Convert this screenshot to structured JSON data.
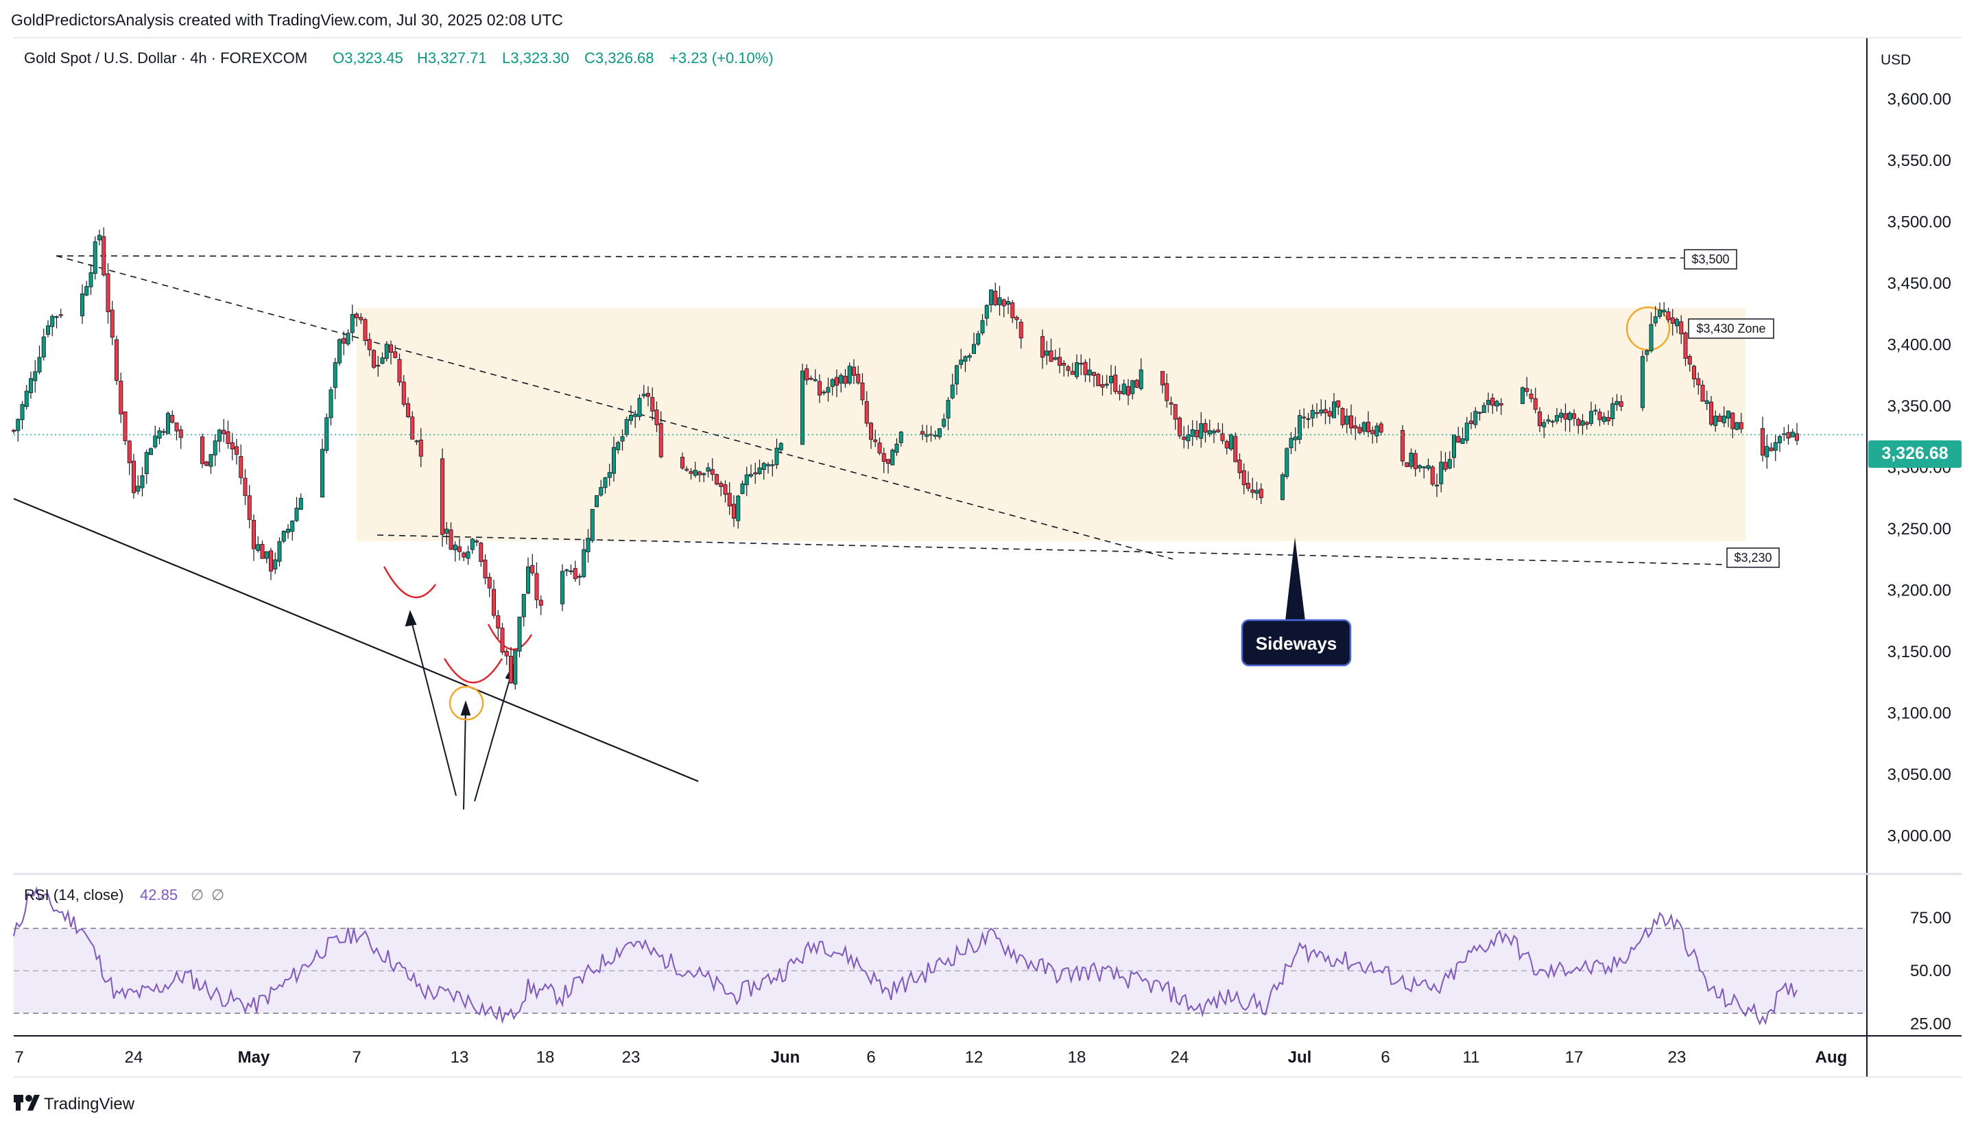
{
  "header": {
    "attribution": "GoldPredictorsAnalysis created with TradingView.com, Jul 30, 2025 02:08 UTC"
  },
  "legend": {
    "symbol": "Gold Spot / U.S. Dollar · 4h · FOREXCOM",
    "open": "O3,323.45",
    "high": "H3,327.71",
    "low": "L3,323.30",
    "close": "C3,326.68",
    "change": "+3.23 (+0.10%)"
  },
  "price_scale": {
    "currency": "USD",
    "ticks": [
      "3,600.00",
      "3,550.00",
      "3,500.00",
      "3,450.00",
      "3,400.00",
      "3,350.00",
      "3,300.00",
      "3,250.00",
      "3,200.00",
      "3,150.00",
      "3,100.00",
      "3,050.00",
      "3,000.00"
    ],
    "last_price": "3,326.68"
  },
  "rsi_pane": {
    "label": "RSI (14, close)",
    "value": "42.85",
    "extra1": "∅",
    "extra2": "∅",
    "ticks": [
      "75.00",
      "50.00",
      "25.00"
    ]
  },
  "time_axis": {
    "ticks": [
      "7",
      "24",
      "May",
      "7",
      "13",
      "18",
      "23",
      "Jun",
      "6",
      "12",
      "18",
      "24",
      "Jul",
      "6",
      "11",
      "17",
      "23",
      "Aug"
    ]
  },
  "annotations": {
    "level_3500": "$3,500",
    "zone_3430": "$3,430 Zone",
    "level_3230": "$3,230",
    "callout": "Sideways"
  },
  "footer": {
    "brand": "TradingView"
  },
  "colors": {
    "up": "#089981",
    "down": "#f23645",
    "accent": "#22ab94",
    "rsi_line": "#7e57c2",
    "zone_fill": "#fdf1de",
    "orange": "#f5a623"
  },
  "chart_data": [
    {
      "type": "candlestick",
      "title": "Gold Spot / U.S. Dollar · 4h · FOREXCOM",
      "ylabel": "USD",
      "ylim": [
        2970,
        3650
      ],
      "x_range": [
        "2025-04-17",
        "2025-08-03"
      ],
      "last": 3326.68,
      "ohlc_latest": {
        "open": 3323.45,
        "high": 3327.71,
        "low": 3323.3,
        "close": 3326.68,
        "change": 3.23,
        "change_pct": 0.1
      },
      "path_close": [
        [
          "2025-04-17",
          3330
        ],
        [
          "2025-04-18",
          3370
        ],
        [
          "2025-04-19",
          3420
        ],
        [
          "2025-04-21",
          3440
        ],
        [
          "2025-04-22",
          3490
        ],
        [
          "2025-04-23",
          3370
        ],
        [
          "2025-04-24",
          3280
        ],
        [
          "2025-04-25",
          3320
        ],
        [
          "2025-04-26",
          3340
        ],
        [
          "2025-04-28",
          3300
        ],
        [
          "2025-04-29",
          3330
        ],
        [
          "2025-04-30",
          3310
        ],
        [
          "2025-05-01",
          3240
        ],
        [
          "2025-05-02",
          3220
        ],
        [
          "2025-05-03",
          3250
        ],
        [
          "2025-05-05",
          3320
        ],
        [
          "2025-05-06",
          3400
        ],
        [
          "2025-05-07",
          3425
        ],
        [
          "2025-05-08",
          3380
        ],
        [
          "2025-05-09",
          3400
        ],
        [
          "2025-05-10",
          3340
        ],
        [
          "2025-05-11",
          3300
        ],
        [
          "2025-05-12",
          3250
        ],
        [
          "2025-05-13",
          3230
        ],
        [
          "2025-05-14",
          3245
        ],
        [
          "2025-05-15",
          3180
        ],
        [
          "2025-05-16",
          3130
        ],
        [
          "2025-05-17",
          3220
        ],
        [
          "2025-05-18",
          3170
        ],
        [
          "2025-05-19",
          3220
        ],
        [
          "2025-05-20",
          3215
        ],
        [
          "2025-05-21",
          3280
        ],
        [
          "2025-05-22",
          3310
        ],
        [
          "2025-05-23",
          3340
        ],
        [
          "2025-05-24",
          3360
        ],
        [
          "2025-05-25",
          3300
        ],
        [
          "2025-05-27",
          3300
        ],
        [
          "2025-05-28",
          3290
        ],
        [
          "2025-05-29",
          3260
        ],
        [
          "2025-05-30",
          3300
        ],
        [
          "2025-05-31",
          3300
        ],
        [
          "2025-06-01",
          3330
        ],
        [
          "2025-06-02",
          3380
        ],
        [
          "2025-06-03",
          3360
        ],
        [
          "2025-06-04",
          3370
        ],
        [
          "2025-06-05",
          3380
        ],
        [
          "2025-06-06",
          3320
        ],
        [
          "2025-06-07",
          3300
        ],
        [
          "2025-06-08",
          3330
        ],
        [
          "2025-06-09",
          3330
        ],
        [
          "2025-06-10",
          3330
        ],
        [
          "2025-06-11",
          3380
        ],
        [
          "2025-06-12",
          3400
        ],
        [
          "2025-06-13",
          3440
        ],
        [
          "2025-06-14",
          3430
        ],
        [
          "2025-06-15",
          3400
        ],
        [
          "2025-06-16",
          3390
        ],
        [
          "2025-06-17",
          3390
        ],
        [
          "2025-06-18",
          3380
        ],
        [
          "2025-06-19",
          3370
        ],
        [
          "2025-06-20",
          3370
        ],
        [
          "2025-06-21",
          3360
        ],
        [
          "2025-06-22",
          3380
        ],
        [
          "2025-06-23",
          3370
        ],
        [
          "2025-06-24",
          3320
        ],
        [
          "2025-06-25",
          3330
        ],
        [
          "2025-06-26",
          3330
        ],
        [
          "2025-06-27",
          3320
        ],
        [
          "2025-06-28",
          3280
        ],
        [
          "2025-06-29",
          3270
        ],
        [
          "2025-06-30",
          3300
        ],
        [
          "2025-07-01",
          3340
        ],
        [
          "2025-07-02",
          3340
        ],
        [
          "2025-07-03",
          3350
        ],
        [
          "2025-07-04",
          3330
        ],
        [
          "2025-07-05",
          3335
        ],
        [
          "2025-07-06",
          3330
        ],
        [
          "2025-07-07",
          3310
        ],
        [
          "2025-07-08",
          3300
        ],
        [
          "2025-07-09",
          3290
        ],
        [
          "2025-07-10",
          3320
        ],
        [
          "2025-07-11",
          3340
        ],
        [
          "2025-07-12",
          3350
        ],
        [
          "2025-07-13",
          3360
        ],
        [
          "2025-07-14",
          3360
        ],
        [
          "2025-07-15",
          3340
        ],
        [
          "2025-07-16",
          3340
        ],
        [
          "2025-07-17",
          3340
        ],
        [
          "2025-07-18",
          3340
        ],
        [
          "2025-07-19",
          3340
        ],
        [
          "2025-07-20",
          3360
        ],
        [
          "2025-07-21",
          3390
        ],
        [
          "2025-07-22",
          3430
        ],
        [
          "2025-07-23",
          3420
        ],
        [
          "2025-07-24",
          3370
        ],
        [
          "2025-07-25",
          3340
        ],
        [
          "2025-07-26",
          3340
        ],
        [
          "2025-07-27",
          3320
        ],
        [
          "2025-07-28",
          3310
        ],
        [
          "2025-07-29",
          3320
        ],
        [
          "2025-07-30",
          3326.68
        ]
      ]
    },
    {
      "type": "line",
      "title": "RSI (14, close)",
      "ylim": [
        20,
        95
      ],
      "bands": [
        30,
        50,
        70
      ],
      "last": 42.85,
      "points": [
        [
          "2025-04-17",
          65
        ],
        [
          "2025-04-18",
          88
        ],
        [
          "2025-04-19",
          82
        ],
        [
          "2025-04-21",
          70
        ],
        [
          "2025-04-23",
          38
        ],
        [
          "2025-04-25",
          40
        ],
        [
          "2025-04-27",
          48
        ],
        [
          "2025-04-29",
          38
        ],
        [
          "2025-05-01",
          33
        ],
        [
          "2025-05-03",
          45
        ],
        [
          "2025-05-05",
          60
        ],
        [
          "2025-05-07",
          68
        ],
        [
          "2025-05-09",
          55
        ],
        [
          "2025-05-11",
          40
        ],
        [
          "2025-05-13",
          38
        ],
        [
          "2025-05-15",
          30
        ],
        [
          "2025-05-16",
          28
        ],
        [
          "2025-05-17",
          42
        ],
        [
          "2025-05-19",
          38
        ],
        [
          "2025-05-21",
          52
        ],
        [
          "2025-05-23",
          64
        ],
        [
          "2025-05-25",
          55
        ],
        [
          "2025-05-27",
          48
        ],
        [
          "2025-05-29",
          38
        ],
        [
          "2025-06-01",
          50
        ],
        [
          "2025-06-03",
          64
        ],
        [
          "2025-06-05",
          55
        ],
        [
          "2025-06-07",
          40
        ],
        [
          "2025-06-09",
          48
        ],
        [
          "2025-06-11",
          58
        ],
        [
          "2025-06-13",
          66
        ],
        [
          "2025-06-15",
          55
        ],
        [
          "2025-06-17",
          48
        ],
        [
          "2025-06-19",
          50
        ],
        [
          "2025-06-21",
          46
        ],
        [
          "2025-06-23",
          42
        ],
        [
          "2025-06-25",
          32
        ],
        [
          "2025-06-27",
          38
        ],
        [
          "2025-06-29",
          33
        ],
        [
          "2025-07-01",
          60
        ],
        [
          "2025-07-03",
          56
        ],
        [
          "2025-07-05",
          52
        ],
        [
          "2025-07-07",
          45
        ],
        [
          "2025-07-09",
          40
        ],
        [
          "2025-07-11",
          58
        ],
        [
          "2025-07-13",
          68
        ],
        [
          "2025-07-15",
          48
        ],
        [
          "2025-07-17",
          52
        ],
        [
          "2025-07-19",
          50
        ],
        [
          "2025-07-21",
          65
        ],
        [
          "2025-07-22",
          75
        ],
        [
          "2025-07-23",
          72
        ],
        [
          "2025-07-25",
          40
        ],
        [
          "2025-07-27",
          32
        ],
        [
          "2025-07-28",
          28
        ],
        [
          "2025-07-29",
          38
        ],
        [
          "2025-07-30",
          42.85
        ]
      ]
    }
  ]
}
